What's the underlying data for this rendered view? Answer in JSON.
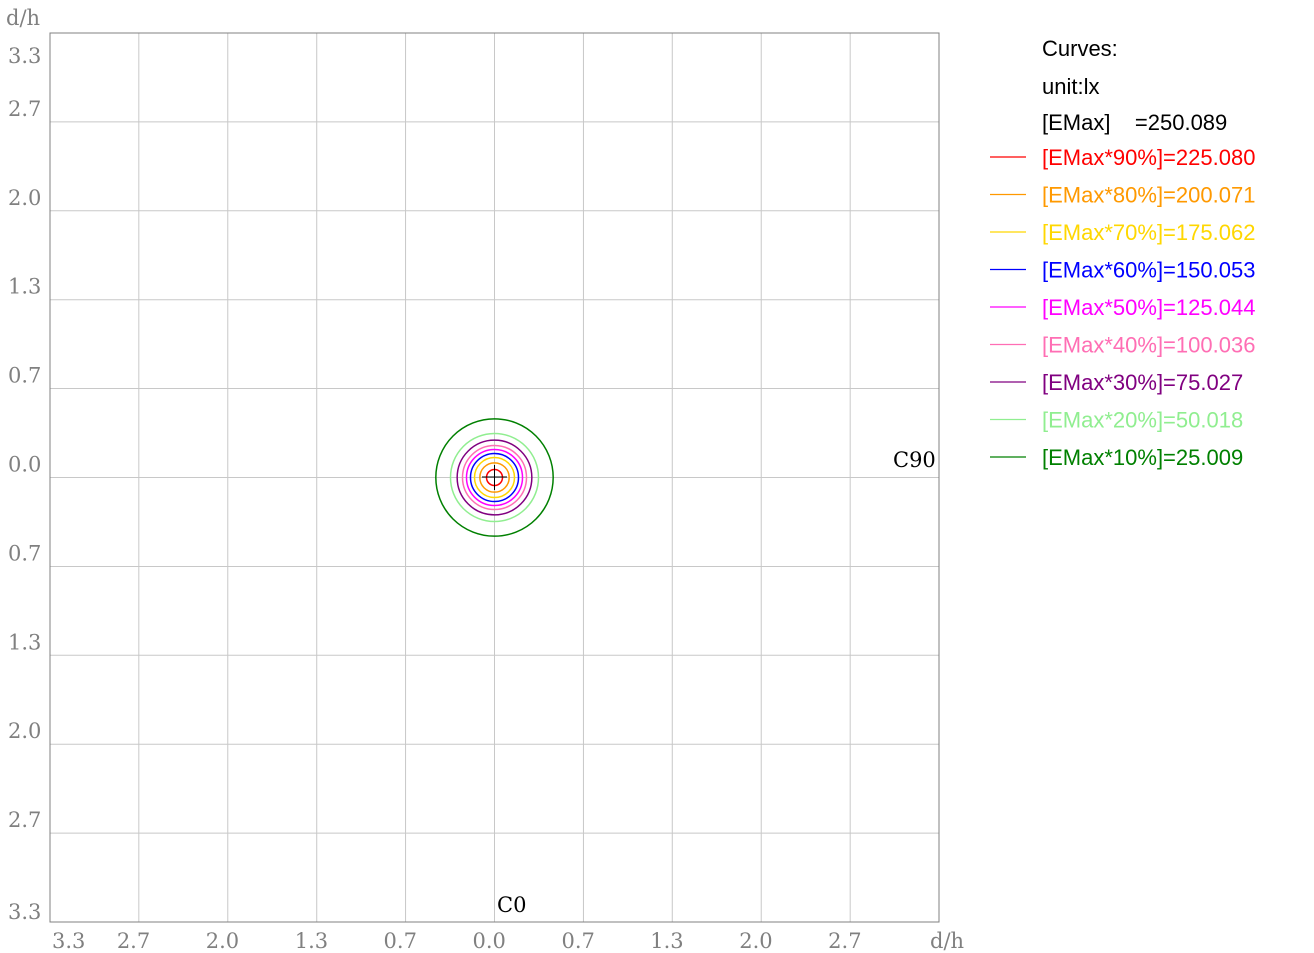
{
  "chart_data": {
    "type": "contour",
    "axis_unit_x": "d/h",
    "axis_unit_y": "d/h",
    "xlim": [
      -3.333,
      3.333
    ],
    "ylim": [
      -3.333,
      3.333
    ],
    "x_ticks": [
      {
        "value": -3.333,
        "label": "3.3"
      },
      {
        "value": -2.667,
        "label": "2.7"
      },
      {
        "value": -2.0,
        "label": "2.0"
      },
      {
        "value": -1.333,
        "label": "1.3"
      },
      {
        "value": -0.667,
        "label": "0.7"
      },
      {
        "value": 0.0,
        "label": "0.0"
      },
      {
        "value": 0.667,
        "label": "0.7"
      },
      {
        "value": 1.333,
        "label": "1.3"
      },
      {
        "value": 2.0,
        "label": "2.0"
      },
      {
        "value": 2.667,
        "label": "2.7"
      }
    ],
    "y_ticks": [
      {
        "value": 3.333,
        "label": "3.3"
      },
      {
        "value": 2.667,
        "label": "2.7"
      },
      {
        "value": 2.0,
        "label": "2.0"
      },
      {
        "value": 1.333,
        "label": "1.3"
      },
      {
        "value": 0.667,
        "label": "0.7"
      },
      {
        "value": 0.0,
        "label": "0.0"
      },
      {
        "value": -0.667,
        "label": "0.7"
      },
      {
        "value": -1.333,
        "label": "1.3"
      },
      {
        "value": -2.0,
        "label": "2.0"
      },
      {
        "value": -2.667,
        "label": "2.7"
      },
      {
        "value": -3.333,
        "label": "3.3"
      }
    ],
    "grid": true,
    "c90_label": "C90",
    "c0_label": "C0",
    "legend": {
      "title": "Curves:",
      "unit": "unit:lx",
      "emax_label": "[EMax]    =250.089",
      "position": "right"
    },
    "series": [
      {
        "name": "[EMax*90%]=225.080",
        "color": "#ff0000",
        "value": 225.08,
        "radius": 0.06
      },
      {
        "name": "[EMax*80%]=200.071",
        "color": "#ff9900",
        "value": 200.071,
        "radius": 0.11
      },
      {
        "name": "[EMax*70%]=175.062",
        "color": "#ffd700",
        "value": 175.062,
        "radius": 0.15
      },
      {
        "name": "[EMax*60%]=150.053",
        "color": "#0000ff",
        "value": 150.053,
        "radius": 0.18
      },
      {
        "name": "[EMax*50%]=125.044",
        "color": "#ff00ff",
        "value": 125.044,
        "radius": 0.21
      },
      {
        "name": "[EMax*40%]=100.036",
        "color": "#ff6eb4",
        "value": 100.036,
        "radius": 0.24
      },
      {
        "name": "[EMax*30%]=75.027",
        "color": "#800080",
        "value": 75.027,
        "radius": 0.28
      },
      {
        "name": "[EMax*20%]=50.018",
        "color": "#90ee90",
        "value": 50.018,
        "radius": 0.33
      },
      {
        "name": "[EMax*10%]=25.009",
        "color": "#008000",
        "value": 25.009,
        "radius": 0.44
      }
    ]
  }
}
